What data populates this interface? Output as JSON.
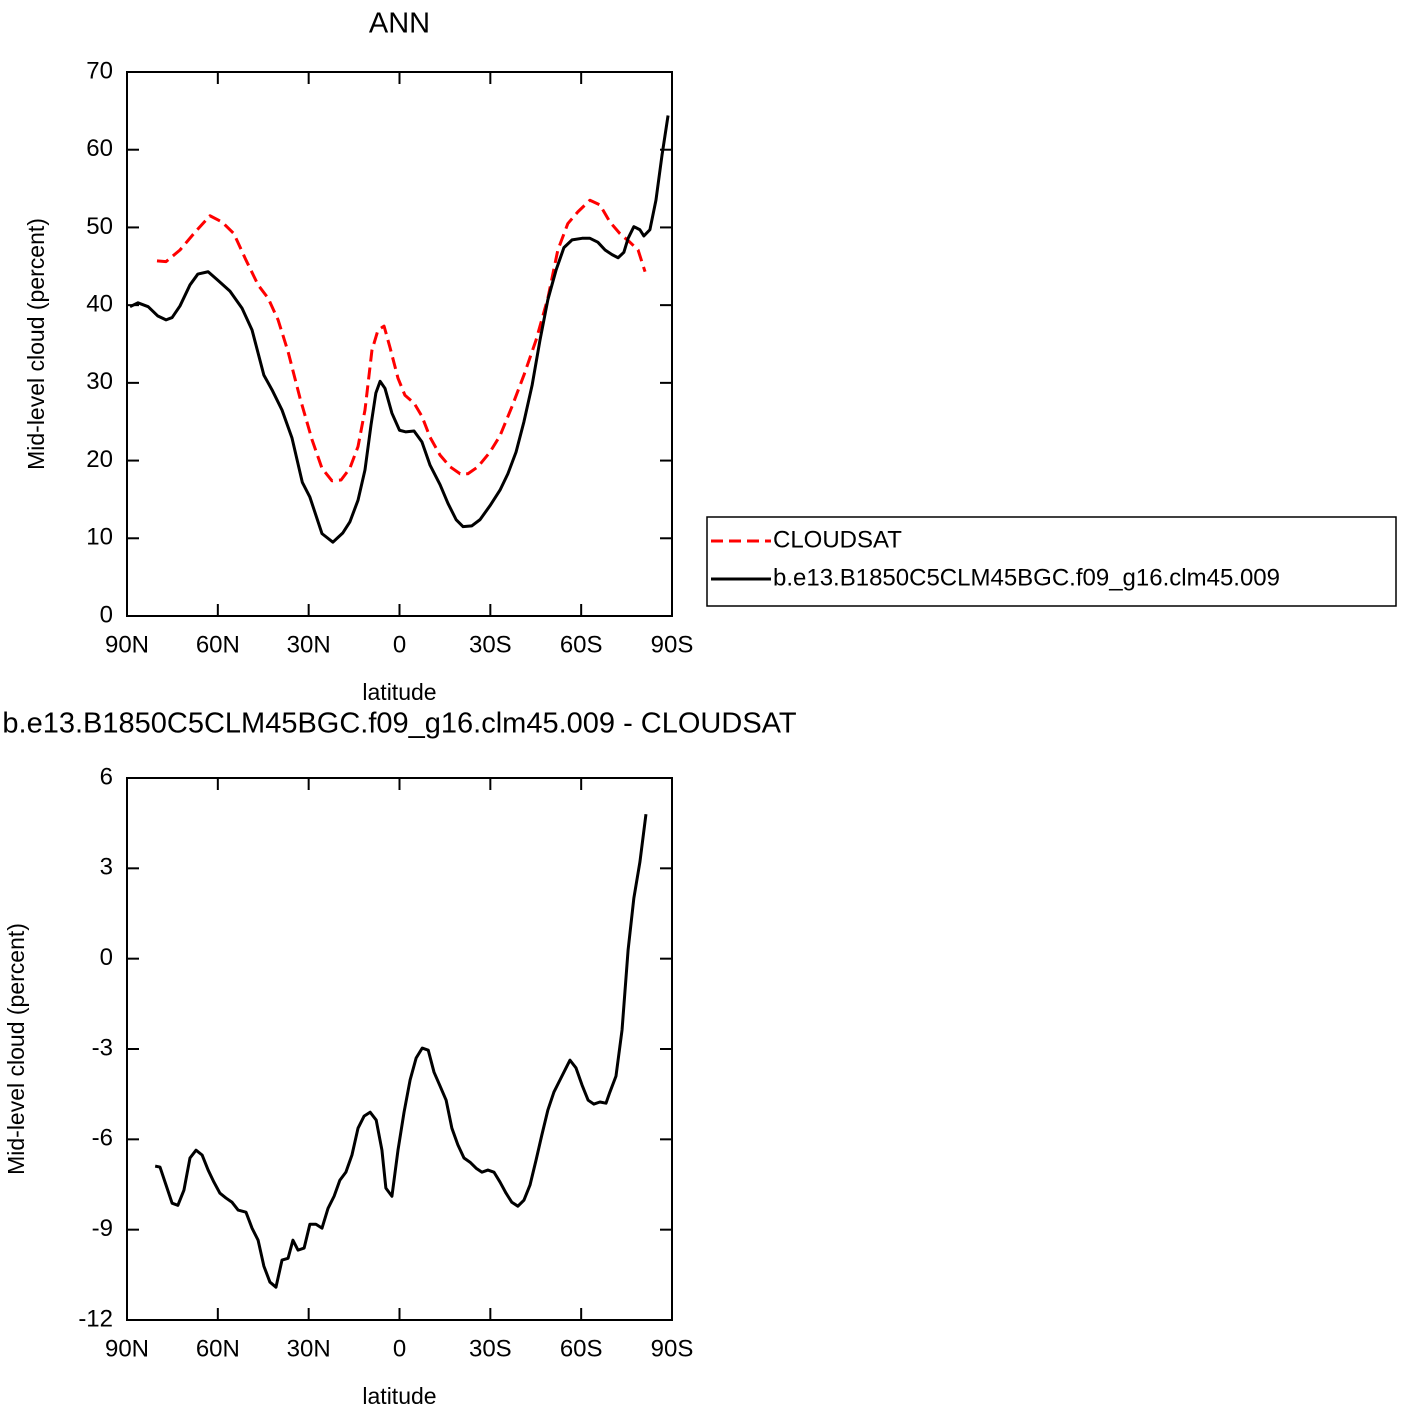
{
  "chart_data": [
    {
      "type": "line",
      "title": "ANN",
      "xlabel": "latitude",
      "ylabel": "Mid-level cloud (percent)",
      "xlim": [
        90,
        -90
      ],
      "xticks": [
        {
          "value": 90,
          "label": "90N"
        },
        {
          "value": 60,
          "label": "60N"
        },
        {
          "value": 30,
          "label": "30N"
        },
        0,
        {
          "value": -30,
          "label": "30S"
        },
        {
          "value": -60,
          "label": "60S"
        },
        {
          "value": -90,
          "label": "90S"
        }
      ],
      "ylim": [
        0,
        70
      ],
      "yticks": [
        0,
        10,
        20,
        30,
        40,
        50,
        60,
        70
      ],
      "legend": "right",
      "series": [
        {
          "name": "CLOUDSAT",
          "color": "#ff0000",
          "linestyle": "dashed",
          "x": [
            80.1,
            77.1,
            72.5,
            67.5,
            62.6,
            58.6,
            54.7,
            50.7,
            46.7,
            43.4,
            40.1,
            36.8,
            32.9,
            28.9,
            25.6,
            22.3,
            19.3,
            16.4,
            13.7,
            11.4,
            9.1,
            7.1,
            5.1,
            3.1,
            0.5,
            -1.8,
            -4.8,
            -7.4,
            -10.1,
            -13.4,
            -16.7,
            -20,
            -22.6,
            -25.9,
            -29.9,
            -33.2,
            -37.1,
            -41.1,
            -45.1,
            -49,
            -52.3,
            -55.6,
            -58.9,
            -62.9,
            -66.2,
            -69.5,
            -72.8,
            -76.1,
            -78.8,
            -81.1
          ],
          "values": [
            45.7,
            45.6,
            47.1,
            49.4,
            51.5,
            50.7,
            49.2,
            45.8,
            42.6,
            40.9,
            38.1,
            34.0,
            28.1,
            22.7,
            19.0,
            17.4,
            17.5,
            19.0,
            21.8,
            26.5,
            34.2,
            36.8,
            37.3,
            34.5,
            30.6,
            28.4,
            27.4,
            25.7,
            23.0,
            20.7,
            19.2,
            18.3,
            18.3,
            19.2,
            21.1,
            23.2,
            26.9,
            31.0,
            35.5,
            40.9,
            47.1,
            50.5,
            52.0,
            53.5,
            52.9,
            50.7,
            49.2,
            48.1,
            47.1,
            44.3
          ]
        },
        {
          "name": "b.e13.B1850C5CLM45BGC.f09_g16.clm45.009",
          "color": "#000000",
          "linestyle": "solid",
          "x": [
            89,
            86.4,
            83,
            79.8,
            77.1,
            75.1,
            72.5,
            69.2,
            66.6,
            63.2,
            60,
            56,
            52,
            48.7,
            44.8,
            42.1,
            38.8,
            35.5,
            32.1,
            29.6,
            25.6,
            22,
            18.7,
            16.4,
            13.7,
            11.4,
            9.4,
            7.8,
            6.4,
            4.8,
            2.5,
            0,
            -2,
            -4.8,
            -7.4,
            -10.1,
            -13.4,
            -16,
            -18.7,
            -21,
            -23.9,
            -26.6,
            -29.9,
            -33.2,
            -35.8,
            -38.5,
            -41.1,
            -43.8,
            -46.4,
            -49,
            -51.7,
            -54.3,
            -57,
            -60.3,
            -62.9,
            -65.5,
            -67.9,
            -70.2,
            -72.2,
            -74.1,
            -75.5,
            -77.4,
            -79.4,
            -80.7,
            -82.7,
            -84.7,
            -86.7,
            -88.7
          ],
          "values": [
            39.8,
            40.3,
            39.8,
            38.6,
            38.1,
            38.4,
            39.9,
            42.6,
            44.0,
            44.3,
            43.2,
            41.8,
            39.6,
            36.8,
            31.0,
            29.1,
            26.5,
            22.9,
            17.2,
            15.3,
            10.6,
            9.5,
            10.7,
            12.1,
            14.9,
            18.8,
            24.6,
            28.7,
            30.2,
            29.3,
            26.1,
            23.9,
            23.7,
            23.8,
            22.4,
            19.4,
            16.9,
            14.5,
            12.4,
            11.5,
            11.6,
            12.4,
            14.2,
            16.2,
            18.3,
            21.1,
            25.0,
            29.7,
            35.5,
            40.7,
            44.5,
            47.4,
            48.4,
            48.6,
            48.6,
            48.1,
            47.1,
            46.5,
            46.1,
            46.8,
            48.6,
            50.1,
            49.7,
            48.9,
            49.7,
            53.5,
            59.3,
            64.4
          ]
        }
      ]
    },
    {
      "type": "line",
      "title": "b.e13.B1850C5CLM45BGC.f09_g16.clm45.009 - CLOUDSAT",
      "xlabel": "latitude",
      "ylabel": "Mid-level cloud (percent)",
      "xlim": [
        90,
        -90
      ],
      "xticks": [
        {
          "value": 90,
          "label": "90N"
        },
        {
          "value": 60,
          "label": "60N"
        },
        {
          "value": 30,
          "label": "30N"
        },
        0,
        {
          "value": -30,
          "label": "30S"
        },
        {
          "value": -60,
          "label": "60S"
        },
        {
          "value": -90,
          "label": "90S"
        }
      ],
      "ylim": [
        -12,
        6
      ],
      "yticks": [
        -12,
        -9,
        -6,
        -3,
        0,
        3,
        6
      ],
      "series": [
        {
          "color": "#000000",
          "linestyle": "solid",
          "x": [
            80.7,
            79.1,
            77.1,
            75.1,
            73.2,
            71.2,
            69.2,
            67.2,
            65.2,
            63.2,
            61.3,
            59.3,
            57.3,
            55.3,
            53.3,
            50.7,
            48.7,
            46.7,
            44.8,
            42.8,
            40.8,
            38.8,
            36.8,
            35.2,
            33.5,
            31.5,
            29.6,
            27.6,
            25.6,
            23.6,
            21.6,
            19.7,
            17.7,
            15.7,
            13.7,
            11.7,
            9.7,
            7.7,
            5.8,
            4.5,
            2.5,
            0.5,
            -1.5,
            -3.5,
            -5.5,
            -7.5,
            -9.5,
            -11.4,
            -13.4,
            -15.4,
            -17.3,
            -19.3,
            -21.3,
            -23.3,
            -25.3,
            -27.2,
            -29.2,
            -31.2,
            -33.2,
            -35.2,
            -37.1,
            -39.1,
            -41.1,
            -43.1,
            -45.1,
            -47,
            -49,
            -51,
            -53,
            -55,
            -56.3,
            -58.3,
            -60.3,
            -62.3,
            -64.2,
            -66.2,
            -68.2,
            -69.5,
            -71.5,
            -73.5,
            -75.5,
            -77.4,
            -79.4,
            -81.4
          ],
          "values": [
            -6.89,
            -6.92,
            -7.52,
            -8.12,
            -8.19,
            -7.69,
            -6.62,
            -6.36,
            -6.52,
            -7.02,
            -7.42,
            -7.79,
            -7.95,
            -8.09,
            -8.35,
            -8.42,
            -8.95,
            -9.35,
            -10.21,
            -10.74,
            -10.91,
            -10.01,
            -9.95,
            -9.35,
            -9.68,
            -9.61,
            -8.82,
            -8.82,
            -8.95,
            -8.29,
            -7.89,
            -7.36,
            -7.09,
            -6.52,
            -5.63,
            -5.23,
            -5.1,
            -5.36,
            -6.36,
            -7.62,
            -7.89,
            -6.36,
            -5.1,
            -4.03,
            -3.3,
            -2.97,
            -3.04,
            -3.77,
            -4.23,
            -4.7,
            -5.63,
            -6.19,
            -6.62,
            -6.76,
            -6.96,
            -7.09,
            -7.02,
            -7.09,
            -7.42,
            -7.79,
            -8.09,
            -8.22,
            -8.02,
            -7.52,
            -6.69,
            -5.86,
            -5.03,
            -4.43,
            -4.03,
            -3.63,
            -3.37,
            -3.63,
            -4.2,
            -4.7,
            -4.83,
            -4.76,
            -4.8,
            -4.43,
            -3.9,
            -2.37,
            0.29,
            2.01,
            3.21,
            4.8
          ]
        }
      ]
    }
  ]
}
